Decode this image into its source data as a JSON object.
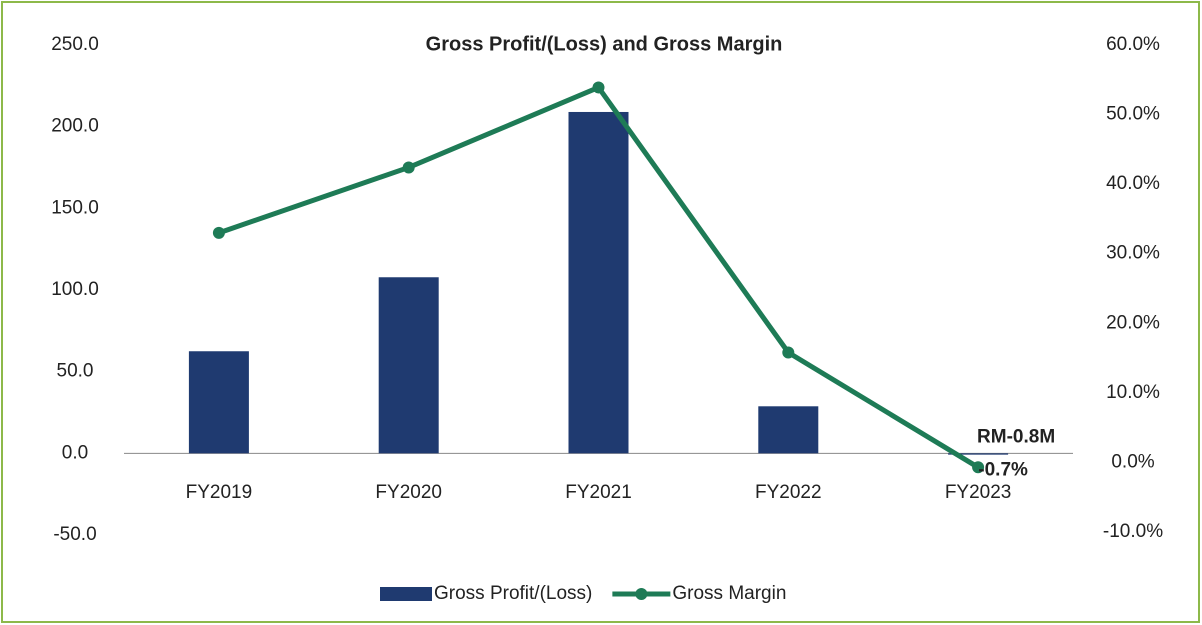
{
  "chart_data": {
    "type": "bar_line",
    "title": "Gross Profit/(Loss) and Gross Margin",
    "categories": [
      "FY2019",
      "FY2020",
      "FY2021",
      "FY2022",
      "FY2023"
    ],
    "series": [
      {
        "name": "Gross Profit/(Loss)",
        "type": "bar",
        "color": "#1f3a70",
        "values": [
          62.5,
          107.8,
          209.0,
          28.8,
          -0.8
        ],
        "value_labels": [
          null,
          null,
          null,
          null,
          "RM-0.8M"
        ]
      },
      {
        "name": "Gross Margin",
        "type": "line",
        "axis": "y2",
        "color": "#1e7b56",
        "values": [
          33.0,
          42.4,
          53.9,
          15.8,
          -0.7
        ],
        "value_labels": [
          null,
          null,
          null,
          null,
          "-0.7%"
        ]
      }
    ],
    "ylim": [
      -50,
      250
    ],
    "yticks": [
      {
        "value": -50,
        "label": "-50.0"
      },
      {
        "value": 0,
        "label": "0.0"
      },
      {
        "value": 50,
        "label": "50.0"
      },
      {
        "value": 100,
        "label": "100.0"
      },
      {
        "value": 150,
        "label": "150.0"
      },
      {
        "value": 200,
        "label": "200.0"
      },
      {
        "value": 250,
        "label": "250.0"
      }
    ],
    "y2lim": [
      -10,
      60
    ],
    "y2ticks": [
      {
        "value": -10,
        "label": "-10.0%"
      },
      {
        "value": 0,
        "label": "0.0%"
      },
      {
        "value": 10,
        "label": "10.0%"
      },
      {
        "value": 20,
        "label": "20.0%"
      },
      {
        "value": 30,
        "label": "30.0%"
      },
      {
        "value": 40,
        "label": "40.0%"
      },
      {
        "value": 50,
        "label": "50.0%"
      },
      {
        "value": 60,
        "label": "60.0%"
      }
    ],
    "grid": false,
    "legend": "bottom"
  }
}
